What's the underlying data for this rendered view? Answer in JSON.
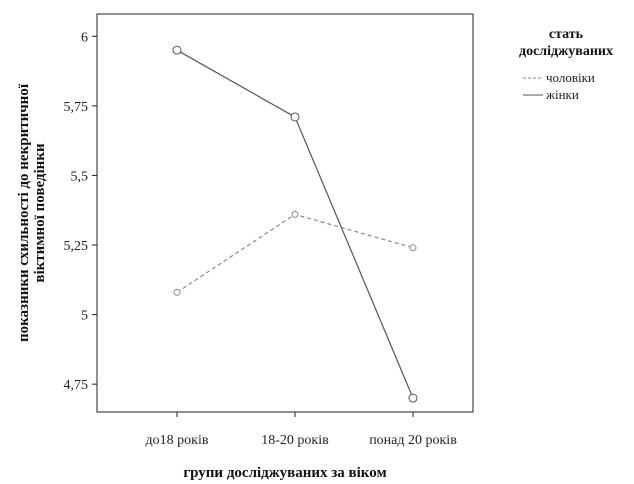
{
  "chart_data": {
    "type": "line",
    "categories": [
      "до18 років",
      "18-20 років",
      "понад 20 років"
    ],
    "series": [
      {
        "name": "чоловіки",
        "values": [
          5.08,
          5.36,
          5.24
        ],
        "color": "#8a8a8a",
        "dash": "dashed"
      },
      {
        "name": "жінки",
        "values": [
          5.95,
          5.71,
          4.7
        ],
        "color": "#555555",
        "dash": "solid"
      }
    ],
    "xlabel": "групи досліджуваних за віком",
    "ylabel_lines": [
      "показники схильності до некритичної",
      "віктимної поведінки"
    ],
    "ylim": [
      4.65,
      6.08
    ],
    "yticks": [
      4.75,
      5,
      5.25,
      5.5,
      5.75,
      6
    ],
    "ytick_labels": [
      "4,75",
      "5",
      "5,25",
      "5,5",
      "5,75",
      "6"
    ],
    "legend": {
      "title_lines": [
        "стать",
        "досліджуваних"
      ],
      "placement": "right"
    },
    "grid": false
  }
}
